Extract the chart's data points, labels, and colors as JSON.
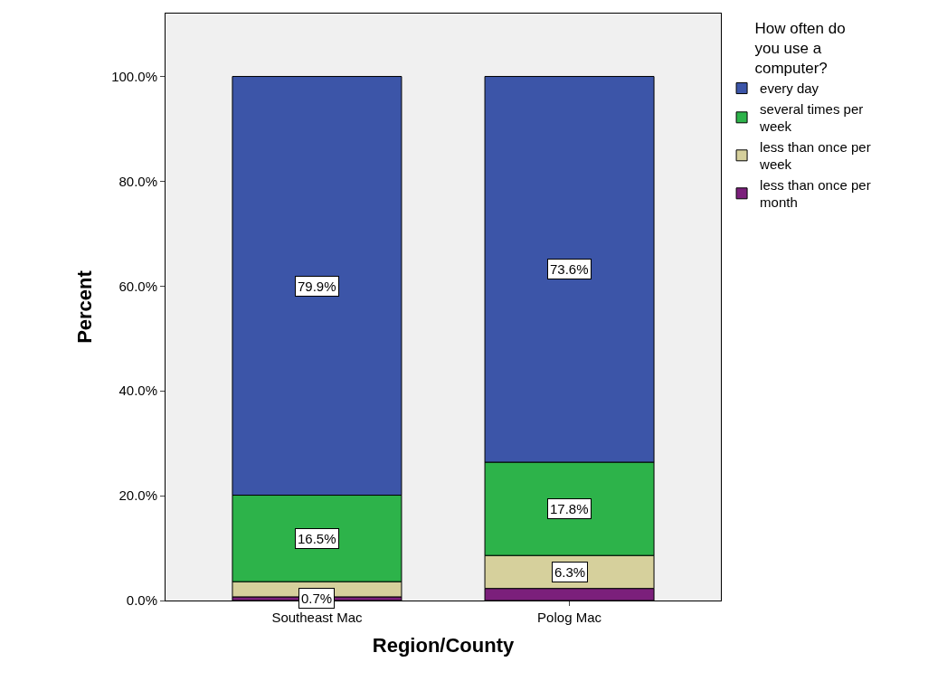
{
  "chart_data": {
    "type": "bar",
    "stacked": true,
    "xlabel": "Region/County",
    "ylabel": "Percent",
    "legend_title": "How often do you use a computer?",
    "legend": "top right",
    "grid": false,
    "categories": [
      "Southeast Mac",
      "Polog Mac"
    ],
    "ylim": [
      0,
      112
    ],
    "yticks": [
      {
        "value": 0,
        "label": "0.0%"
      },
      {
        "value": 20,
        "label": "20.0%"
      },
      {
        "value": 40,
        "label": "40.0%"
      },
      {
        "value": 60,
        "label": "60.0%"
      },
      {
        "value": 80,
        "label": "80.0%"
      },
      {
        "value": 100,
        "label": "100.0%"
      }
    ],
    "series": [
      {
        "name": "less than once per month",
        "color": "#7b1f7b",
        "values": [
          0.7,
          2.3
        ],
        "value_labels": [
          "0.7%",
          null
        ]
      },
      {
        "name": "less than once per week",
        "color": "#d6d09c",
        "values": [
          2.9,
          6.3
        ],
        "value_labels": [
          null,
          "6.3%"
        ]
      },
      {
        "name": "several times per week",
        "color": "#2db34a",
        "values": [
          16.5,
          17.8
        ],
        "value_labels": [
          "16.5%",
          "17.8%"
        ]
      },
      {
        "name": "every day",
        "color": "#3c55a8",
        "values": [
          79.9,
          73.6
        ],
        "value_labels": [
          "79.9%",
          "73.6%"
        ]
      }
    ]
  }
}
